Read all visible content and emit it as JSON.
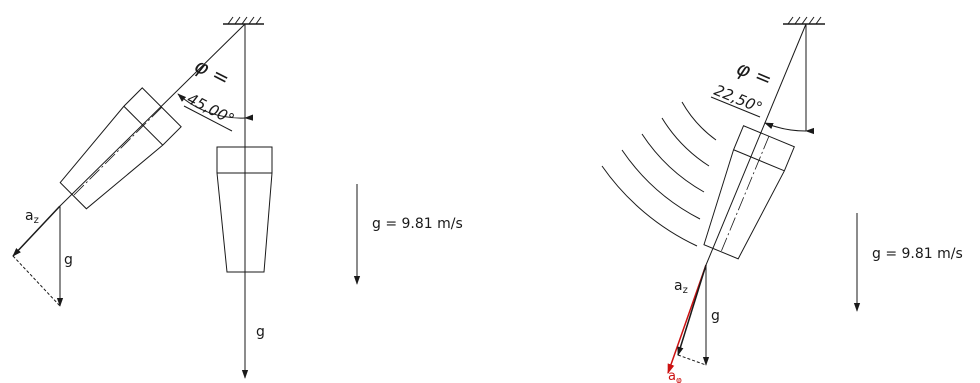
{
  "left_diagram": {
    "angle_symbol": "φ =",
    "angle_value": "45,00°",
    "gravity_label": "g = 9.81 m/s",
    "vector_labels": {
      "az_base": "a",
      "az_sub": "z",
      "g_component": "g",
      "g_vertical": "g"
    }
  },
  "right_diagram": {
    "angle_symbol": "φ =",
    "angle_value": "22,50°",
    "gravity_label": "g = 9.81 m/s",
    "vector_labels": {
      "az_base": "a",
      "az_sub": "z",
      "g_component": "g",
      "aphi_base": "a",
      "aphi_sub": "φ"
    },
    "colors": {
      "tangential_accel": "#cc1111"
    }
  }
}
